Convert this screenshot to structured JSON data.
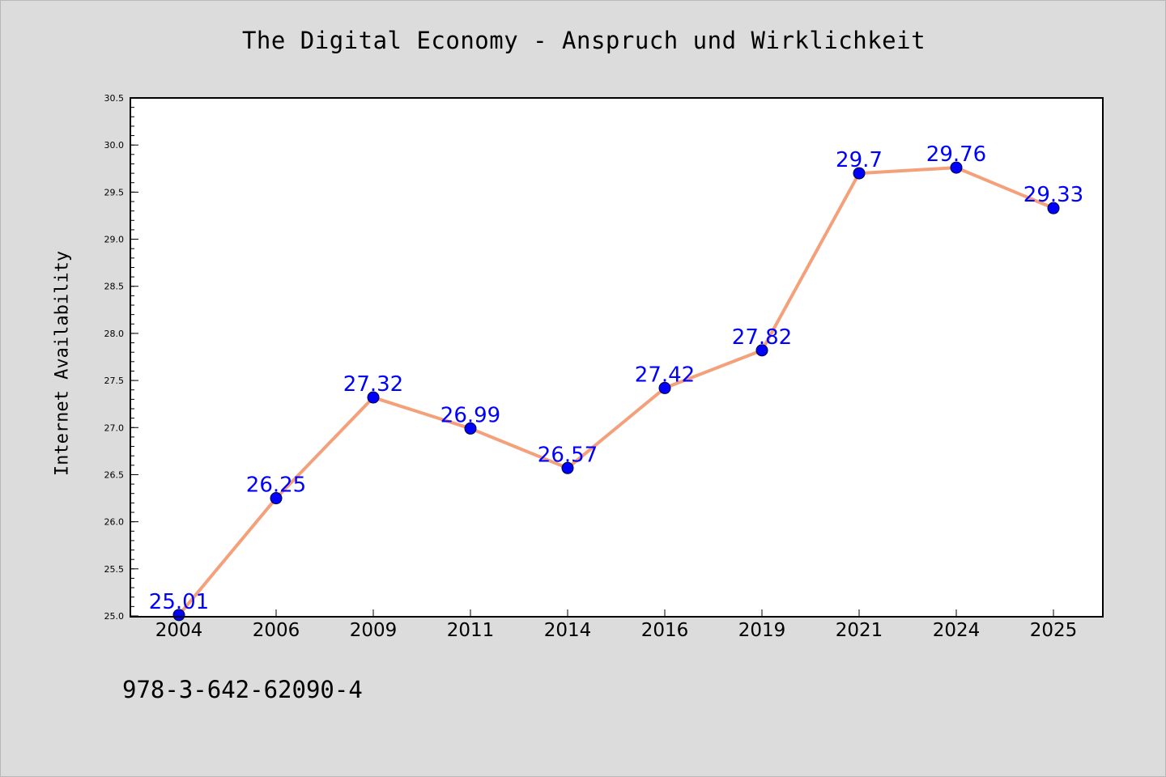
{
  "chart_data": {
    "type": "line",
    "title": "The Digital Economy - Anspruch und Wirklichkeit",
    "ylabel": "Internet Availability",
    "xlabel": "",
    "categories": [
      "2004",
      "2006",
      "2009",
      "2011",
      "2014",
      "2016",
      "2019",
      "2021",
      "2024",
      "2025"
    ],
    "series": [
      {
        "values": [
          25.01,
          26.25,
          27.32,
          26.99,
          26.57,
          27.42,
          27.82,
          29.7,
          29.76,
          29.33
        ]
      }
    ],
    "data_labels": [
      "25.01",
      "26.25",
      "27.32",
      "26.99",
      "26.57",
      "27.42",
      "27.82",
      "29.7",
      "29.76",
      "29.33"
    ],
    "ylim": [
      25.0,
      30.5
    ],
    "yticks": [
      25.0,
      25.5,
      26.0,
      26.5,
      27.0,
      27.5,
      28.0,
      28.5,
      29.0,
      29.5,
      30.0,
      30.5
    ],
    "ytick_labels": [
      "25.0",
      "25.5",
      "26.0",
      "26.5",
      "27.0",
      "27.5",
      "28.0",
      "28.5",
      "29.0",
      "29.5",
      "30.0",
      "30.5"
    ],
    "grid": false,
    "colors": {
      "line": "#f4a07a",
      "marker": "#0000ff",
      "label": "#0000ff",
      "background": "#dcdcdc",
      "plot_background": "#ffffff"
    }
  },
  "footer": {
    "isbn": "978-3-642-62090-4"
  }
}
